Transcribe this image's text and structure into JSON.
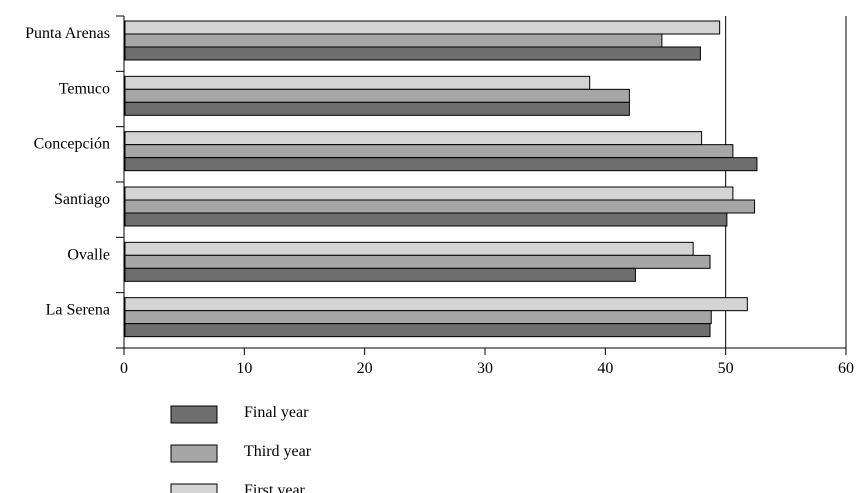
{
  "chart_data": {
    "type": "bar",
    "orientation": "horizontal",
    "title": "",
    "xlabel": "",
    "ylabel": "",
    "xlim": [
      0,
      60
    ],
    "x_ticks": [
      0,
      10,
      20,
      30,
      40,
      50,
      60
    ],
    "grid": "vertical lines at 50 and 60",
    "legend_position": "bottom-left",
    "categories": [
      "Punta Arenas",
      "Temuco",
      "Concepción",
      "Santiago",
      "Ovalle",
      "La Serena"
    ],
    "series": [
      {
        "name": "First year",
        "color": "#d4d4d4",
        "values": [
          49.5,
          38.7,
          48.0,
          50.6,
          47.3,
          51.8
        ]
      },
      {
        "name": "Third year",
        "color": "#a6a6a6",
        "values": [
          44.7,
          42.0,
          50.6,
          52.4,
          48.7,
          48.8
        ]
      },
      {
        "name": "Final year",
        "color": "#6e6e6e",
        "values": [
          47.9,
          42.0,
          52.6,
          50.1,
          42.5,
          48.7
        ]
      }
    ],
    "legend_order": [
      "Final year",
      "Third year",
      "First year"
    ]
  }
}
